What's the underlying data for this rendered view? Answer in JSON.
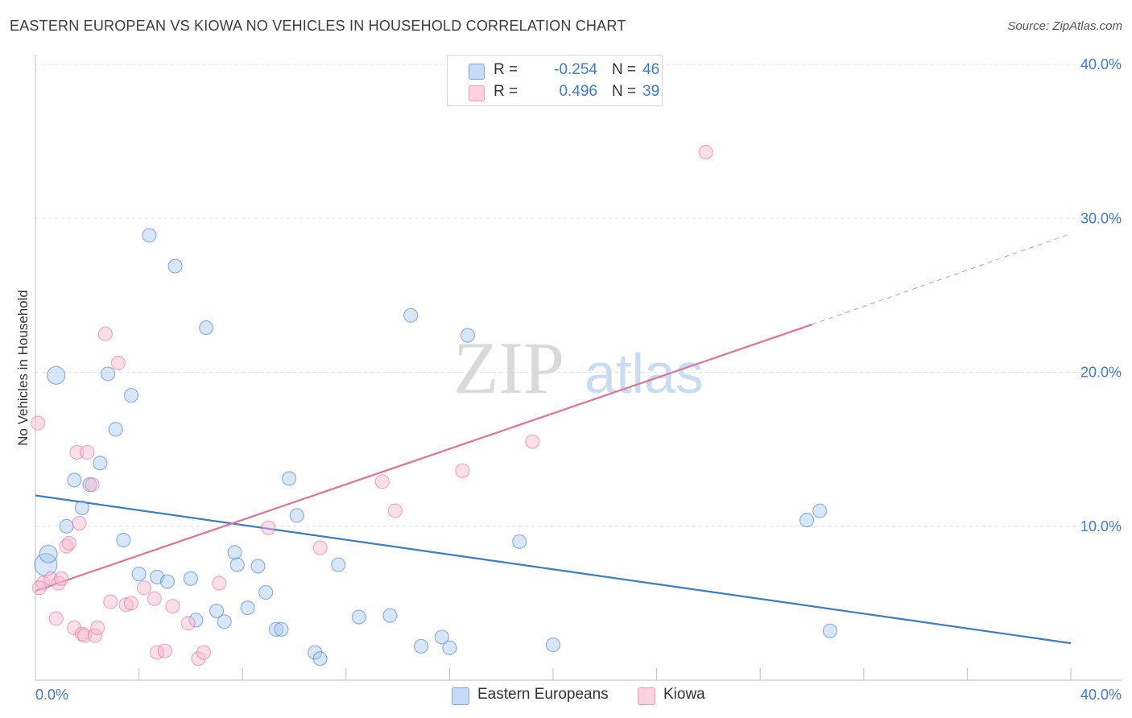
{
  "title": "EASTERN EUROPEAN VS KIOWA NO VEHICLES IN HOUSEHOLD CORRELATION CHART",
  "source": "Source: ZipAtlas.com",
  "watermark": {
    "zip": "ZIP",
    "atlas": "atlas"
  },
  "legend": {
    "rows": [
      {
        "r_label": "R =",
        "r_value": "-0.254",
        "n_label": "N =",
        "n_value": "46",
        "color": "#a9c8ef"
      },
      {
        "r_label": "R =",
        "r_value": "0.496",
        "n_label": "N =",
        "n_value": "39",
        "color": "#f6b9cb"
      }
    ]
  },
  "bottom_legend": [
    {
      "label": "Eastern Europeans",
      "color": "#a9c8ef"
    },
    {
      "label": "Kiowa",
      "color": "#f6b9cb"
    }
  ],
  "chart_data": {
    "type": "scatter",
    "title": "EASTERN EUROPEAN VS KIOWA NO VEHICLES IN HOUSEHOLD CORRELATION CHART",
    "xlabel": "",
    "ylabel": "No Vehicles in Household",
    "xlim": [
      0,
      40
    ],
    "ylim": [
      0,
      40
    ],
    "x_tick_labels": [
      "0.0%",
      "40.0%"
    ],
    "y_tick_labels": [
      {
        "value": 10,
        "label": "10.0%"
      },
      {
        "value": 20,
        "label": "20.0%"
      },
      {
        "value": 30,
        "label": "30.0%"
      },
      {
        "value": 40,
        "label": "40.0%"
      }
    ],
    "series": [
      {
        "name": "Eastern Europeans",
        "color": "#3d7cc9",
        "fill": "#a9c8ef",
        "trend": {
          "x0": 0,
          "y0": 12.0,
          "x1": 40,
          "y1": 2.4
        },
        "points": [
          {
            "x": 0.4,
            "y": 7.5,
            "s": 2
          },
          {
            "x": 0.5,
            "y": 8.2,
            "s": 1
          },
          {
            "x": 0.8,
            "y": 19.8,
            "s": 1
          },
          {
            "x": 1.2,
            "y": 10.0,
            "s": 0
          },
          {
            "x": 1.5,
            "y": 13.0,
            "s": 0
          },
          {
            "x": 1.8,
            "y": 11.2,
            "s": 0
          },
          {
            "x": 2.1,
            "y": 12.7,
            "s": 0
          },
          {
            "x": 2.5,
            "y": 14.1,
            "s": 0
          },
          {
            "x": 2.8,
            "y": 19.9,
            "s": 0
          },
          {
            "x": 3.1,
            "y": 16.3,
            "s": 0
          },
          {
            "x": 3.4,
            "y": 9.1,
            "s": 0
          },
          {
            "x": 3.7,
            "y": 18.5,
            "s": 0
          },
          {
            "x": 4.0,
            "y": 6.9,
            "s": 0
          },
          {
            "x": 4.4,
            "y": 28.9,
            "s": 0
          },
          {
            "x": 4.7,
            "y": 6.7,
            "s": 0
          },
          {
            "x": 5.1,
            "y": 6.4,
            "s": 0
          },
          {
            "x": 5.4,
            "y": 26.9,
            "s": 0
          },
          {
            "x": 6.0,
            "y": 6.6,
            "s": 0
          },
          {
            "x": 6.2,
            "y": 3.9,
            "s": 0
          },
          {
            "x": 6.6,
            "y": 22.9,
            "s": 0
          },
          {
            "x": 7.0,
            "y": 4.5,
            "s": 0
          },
          {
            "x": 7.3,
            "y": 3.8,
            "s": 0
          },
          {
            "x": 7.7,
            "y": 8.3,
            "s": 0
          },
          {
            "x": 7.8,
            "y": 7.5,
            "s": 0
          },
          {
            "x": 8.2,
            "y": 4.7,
            "s": 0
          },
          {
            "x": 8.6,
            "y": 7.4,
            "s": 0
          },
          {
            "x": 8.9,
            "y": 5.7,
            "s": 0
          },
          {
            "x": 9.3,
            "y": 3.3,
            "s": 0
          },
          {
            "x": 9.5,
            "y": 3.3,
            "s": 0
          },
          {
            "x": 9.8,
            "y": 13.1,
            "s": 0
          },
          {
            "x": 10.1,
            "y": 10.7,
            "s": 0
          },
          {
            "x": 10.8,
            "y": 1.8,
            "s": 0
          },
          {
            "x": 11.0,
            "y": 1.4,
            "s": 0
          },
          {
            "x": 11.7,
            "y": 7.5,
            "s": 0
          },
          {
            "x": 12.5,
            "y": 4.1,
            "s": 0
          },
          {
            "x": 13.7,
            "y": 4.2,
            "s": 0
          },
          {
            "x": 14.5,
            "y": 23.7,
            "s": 0
          },
          {
            "x": 14.9,
            "y": 2.2,
            "s": 0
          },
          {
            "x": 15.7,
            "y": 2.8,
            "s": 0
          },
          {
            "x": 16.0,
            "y": 2.1,
            "s": 0
          },
          {
            "x": 16.7,
            "y": 22.4,
            "s": 0
          },
          {
            "x": 18.7,
            "y": 9.0,
            "s": 0
          },
          {
            "x": 20.0,
            "y": 2.3,
            "s": 0
          },
          {
            "x": 29.8,
            "y": 10.4,
            "s": 0
          },
          {
            "x": 30.3,
            "y": 11.0,
            "s": 0
          },
          {
            "x": 30.7,
            "y": 3.2,
            "s": 0
          }
        ]
      },
      {
        "name": "Kiowa",
        "color": "#e4709a",
        "fill": "#f6b9cb",
        "trend": {
          "x0": 0,
          "y0": 5.8,
          "x1": 30.0,
          "y1": 23.1,
          "dash_to": {
            "x": 40,
            "y": 29.0
          }
        },
        "points": [
          {
            "x": 0.1,
            "y": 16.7,
            "s": 0
          },
          {
            "x": 0.3,
            "y": 6.3,
            "s": 0
          },
          {
            "x": 0.6,
            "y": 6.6,
            "s": 0
          },
          {
            "x": 0.8,
            "y": 4.0,
            "s": 0
          },
          {
            "x": 0.9,
            "y": 6.3,
            "s": 0
          },
          {
            "x": 1.0,
            "y": 6.6,
            "s": 0
          },
          {
            "x": 1.2,
            "y": 8.7,
            "s": 0
          },
          {
            "x": 1.3,
            "y": 8.9,
            "s": 0
          },
          {
            "x": 1.5,
            "y": 3.4,
            "s": 0
          },
          {
            "x": 1.6,
            "y": 14.8,
            "s": 0
          },
          {
            "x": 1.7,
            "y": 10.2,
            "s": 0
          },
          {
            "x": 1.8,
            "y": 3.0,
            "s": 0
          },
          {
            "x": 1.9,
            "y": 2.9,
            "s": 0
          },
          {
            "x": 2.0,
            "y": 14.8,
            "s": 0
          },
          {
            "x": 2.2,
            "y": 12.7,
            "s": 0
          },
          {
            "x": 2.3,
            "y": 2.9,
            "s": 0
          },
          {
            "x": 2.4,
            "y": 3.4,
            "s": 0
          },
          {
            "x": 2.7,
            "y": 22.5,
            "s": 0
          },
          {
            "x": 2.9,
            "y": 5.1,
            "s": 0
          },
          {
            "x": 3.2,
            "y": 20.6,
            "s": 0
          },
          {
            "x": 3.5,
            "y": 4.9,
            "s": 0
          },
          {
            "x": 3.7,
            "y": 5.0,
            "s": 0
          },
          {
            "x": 4.2,
            "y": 6.0,
            "s": 0
          },
          {
            "x": 4.6,
            "y": 5.3,
            "s": 0
          },
          {
            "x": 4.7,
            "y": 1.8,
            "s": 0
          },
          {
            "x": 5.0,
            "y": 1.9,
            "s": 0
          },
          {
            "x": 5.3,
            "y": 4.8,
            "s": 0
          },
          {
            "x": 5.9,
            "y": 3.7,
            "s": 0
          },
          {
            "x": 6.3,
            "y": 1.4,
            "s": 0
          },
          {
            "x": 6.5,
            "y": 1.8,
            "s": 0
          },
          {
            "x": 7.1,
            "y": 6.3,
            "s": 0
          },
          {
            "x": 9.0,
            "y": 9.9,
            "s": 0
          },
          {
            "x": 11.0,
            "y": 8.6,
            "s": 0
          },
          {
            "x": 13.4,
            "y": 12.9,
            "s": 0
          },
          {
            "x": 13.9,
            "y": 11.0,
            "s": 0
          },
          {
            "x": 16.5,
            "y": 13.6,
            "s": 0
          },
          {
            "x": 19.2,
            "y": 15.5,
            "s": 0
          },
          {
            "x": 25.9,
            "y": 34.3,
            "s": 0
          },
          {
            "x": 0.15,
            "y": 6.0,
            "s": 0
          }
        ]
      }
    ]
  }
}
